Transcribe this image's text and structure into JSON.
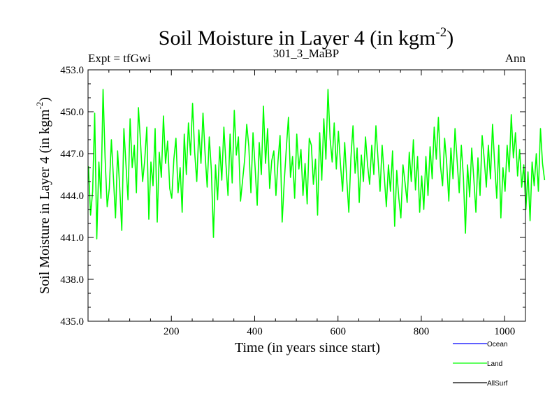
{
  "header": {
    "title_main": "Soil Moisture in Layer 4 (in kgm",
    "title_sup": "-2",
    "title_close": ")",
    "expt_label": "Expt = tfGwi",
    "run_label": "301_3_MaBP",
    "period_label": "Ann"
  },
  "chart_data": {
    "type": "line",
    "title": "Soil Moisture in Layer 4 (in kgm-2)",
    "xlabel": "Time (in years since start)",
    "ylabel": "Soil Moisture in Layer 4 (in kgm-2)",
    "ylabel_main": "Soil Moisture in Layer 4 (in kgm",
    "ylabel_sup": "-2",
    "ylabel_close": ")",
    "xlim": [
      0,
      1050
    ],
    "ylim": [
      435.0,
      453.0
    ],
    "x_ticks": [
      200,
      400,
      600,
      800,
      1000
    ],
    "y_ticks": [
      "435.0",
      "438.0",
      "441.0",
      "444.0",
      "447.0",
      "450.0",
      "453.0"
    ],
    "grid": false,
    "legend_position": "bottom-right, below plot",
    "series": [
      {
        "name": "Ocean",
        "color": "#0000ff",
        "values": []
      },
      {
        "name": "Land",
        "color": "#00ff00",
        "x_start": 1,
        "x_step": 5,
        "values": [
          446.1,
          442.6,
          444.3,
          449.9,
          440.9,
          446.4,
          443.8,
          451.6,
          446.7,
          443.2,
          444.5,
          448.0,
          445.2,
          442.4,
          447.2,
          444.6,
          441.5,
          448.8,
          446.2,
          443.7,
          449.5,
          446.0,
          447.6,
          444.2,
          450.3,
          447.8,
          445.0,
          446.5,
          448.9,
          442.3,
          446.4,
          444.7,
          448.8,
          442.1,
          447.1,
          445.3,
          449.7,
          446.3,
          447.9,
          444.5,
          443.8,
          446.6,
          448.1,
          444.2,
          446.0,
          442.8,
          448.4,
          445.5,
          449.2,
          446.9,
          450.6,
          447.1,
          445.0,
          448.7,
          446.3,
          449.9,
          447.0,
          444.6,
          448.2,
          445.8,
          441.0,
          446.2,
          443.7,
          447.5,
          445.1,
          448.9,
          446.3,
          444.0,
          448.4,
          444.9,
          450.1,
          446.9,
          448.2,
          443.6,
          445.1,
          446.6,
          449.1,
          447.5,
          444.2,
          448.5,
          446.0,
          443.3,
          447.8,
          445.5,
          450.4,
          446.3,
          448.8,
          444.5,
          446.5,
          447.2,
          444.0,
          446.5,
          448.3,
          442.1,
          445.0,
          447.4,
          449.6,
          445.3,
          446.8,
          443.8,
          448.4,
          445.9,
          447.3,
          444.0,
          446.3,
          443.4,
          448.1,
          447.6,
          444.8,
          446.6,
          442.6,
          448.5,
          445.1,
          449.5,
          446.6,
          451.6,
          448.1,
          446.4,
          449.2,
          445.9,
          448.6,
          446.2,
          444.3,
          447.8,
          445.2,
          442.8,
          446.7,
          449.0,
          445.6,
          447.4,
          443.5,
          446.9,
          445.0,
          448.2,
          446.2,
          444.8,
          447.6,
          445.5,
          449.0,
          446.7,
          444.3,
          447.6,
          445.4,
          443.2,
          446.2,
          444.3,
          447.2,
          441.8,
          445.8,
          443.8,
          442.4,
          446.2,
          444.9,
          443.5,
          447.1,
          445.0,
          448.0,
          444.4,
          446.8,
          442.8,
          445.4,
          443.0,
          446.8,
          444.0,
          447.5,
          445.2,
          448.9,
          446.6,
          449.6,
          446.1,
          444.7,
          448.1,
          446.3,
          443.6,
          447.4,
          445.2,
          448.8,
          446.5,
          444.2,
          447.6,
          445.3,
          441.3,
          446.2,
          443.9,
          447.4,
          445.2,
          442.8,
          446.7,
          444.0,
          448.3,
          446.6,
          444.6,
          447.6,
          445.2,
          449.1,
          446.3,
          443.8,
          447.6,
          442.4,
          446.0,
          444.3,
          447.6,
          445.7,
          449.8,
          446.7,
          448.5,
          445.4,
          447.3,
          444.6,
          446.2,
          443.0,
          445.7,
          442.2,
          446.4,
          444.7,
          447.0,
          444.3,
          448.8,
          446.3,
          445.1
        ]
      },
      {
        "name": "AllSurf",
        "color": "#000000",
        "values": []
      }
    ]
  }
}
